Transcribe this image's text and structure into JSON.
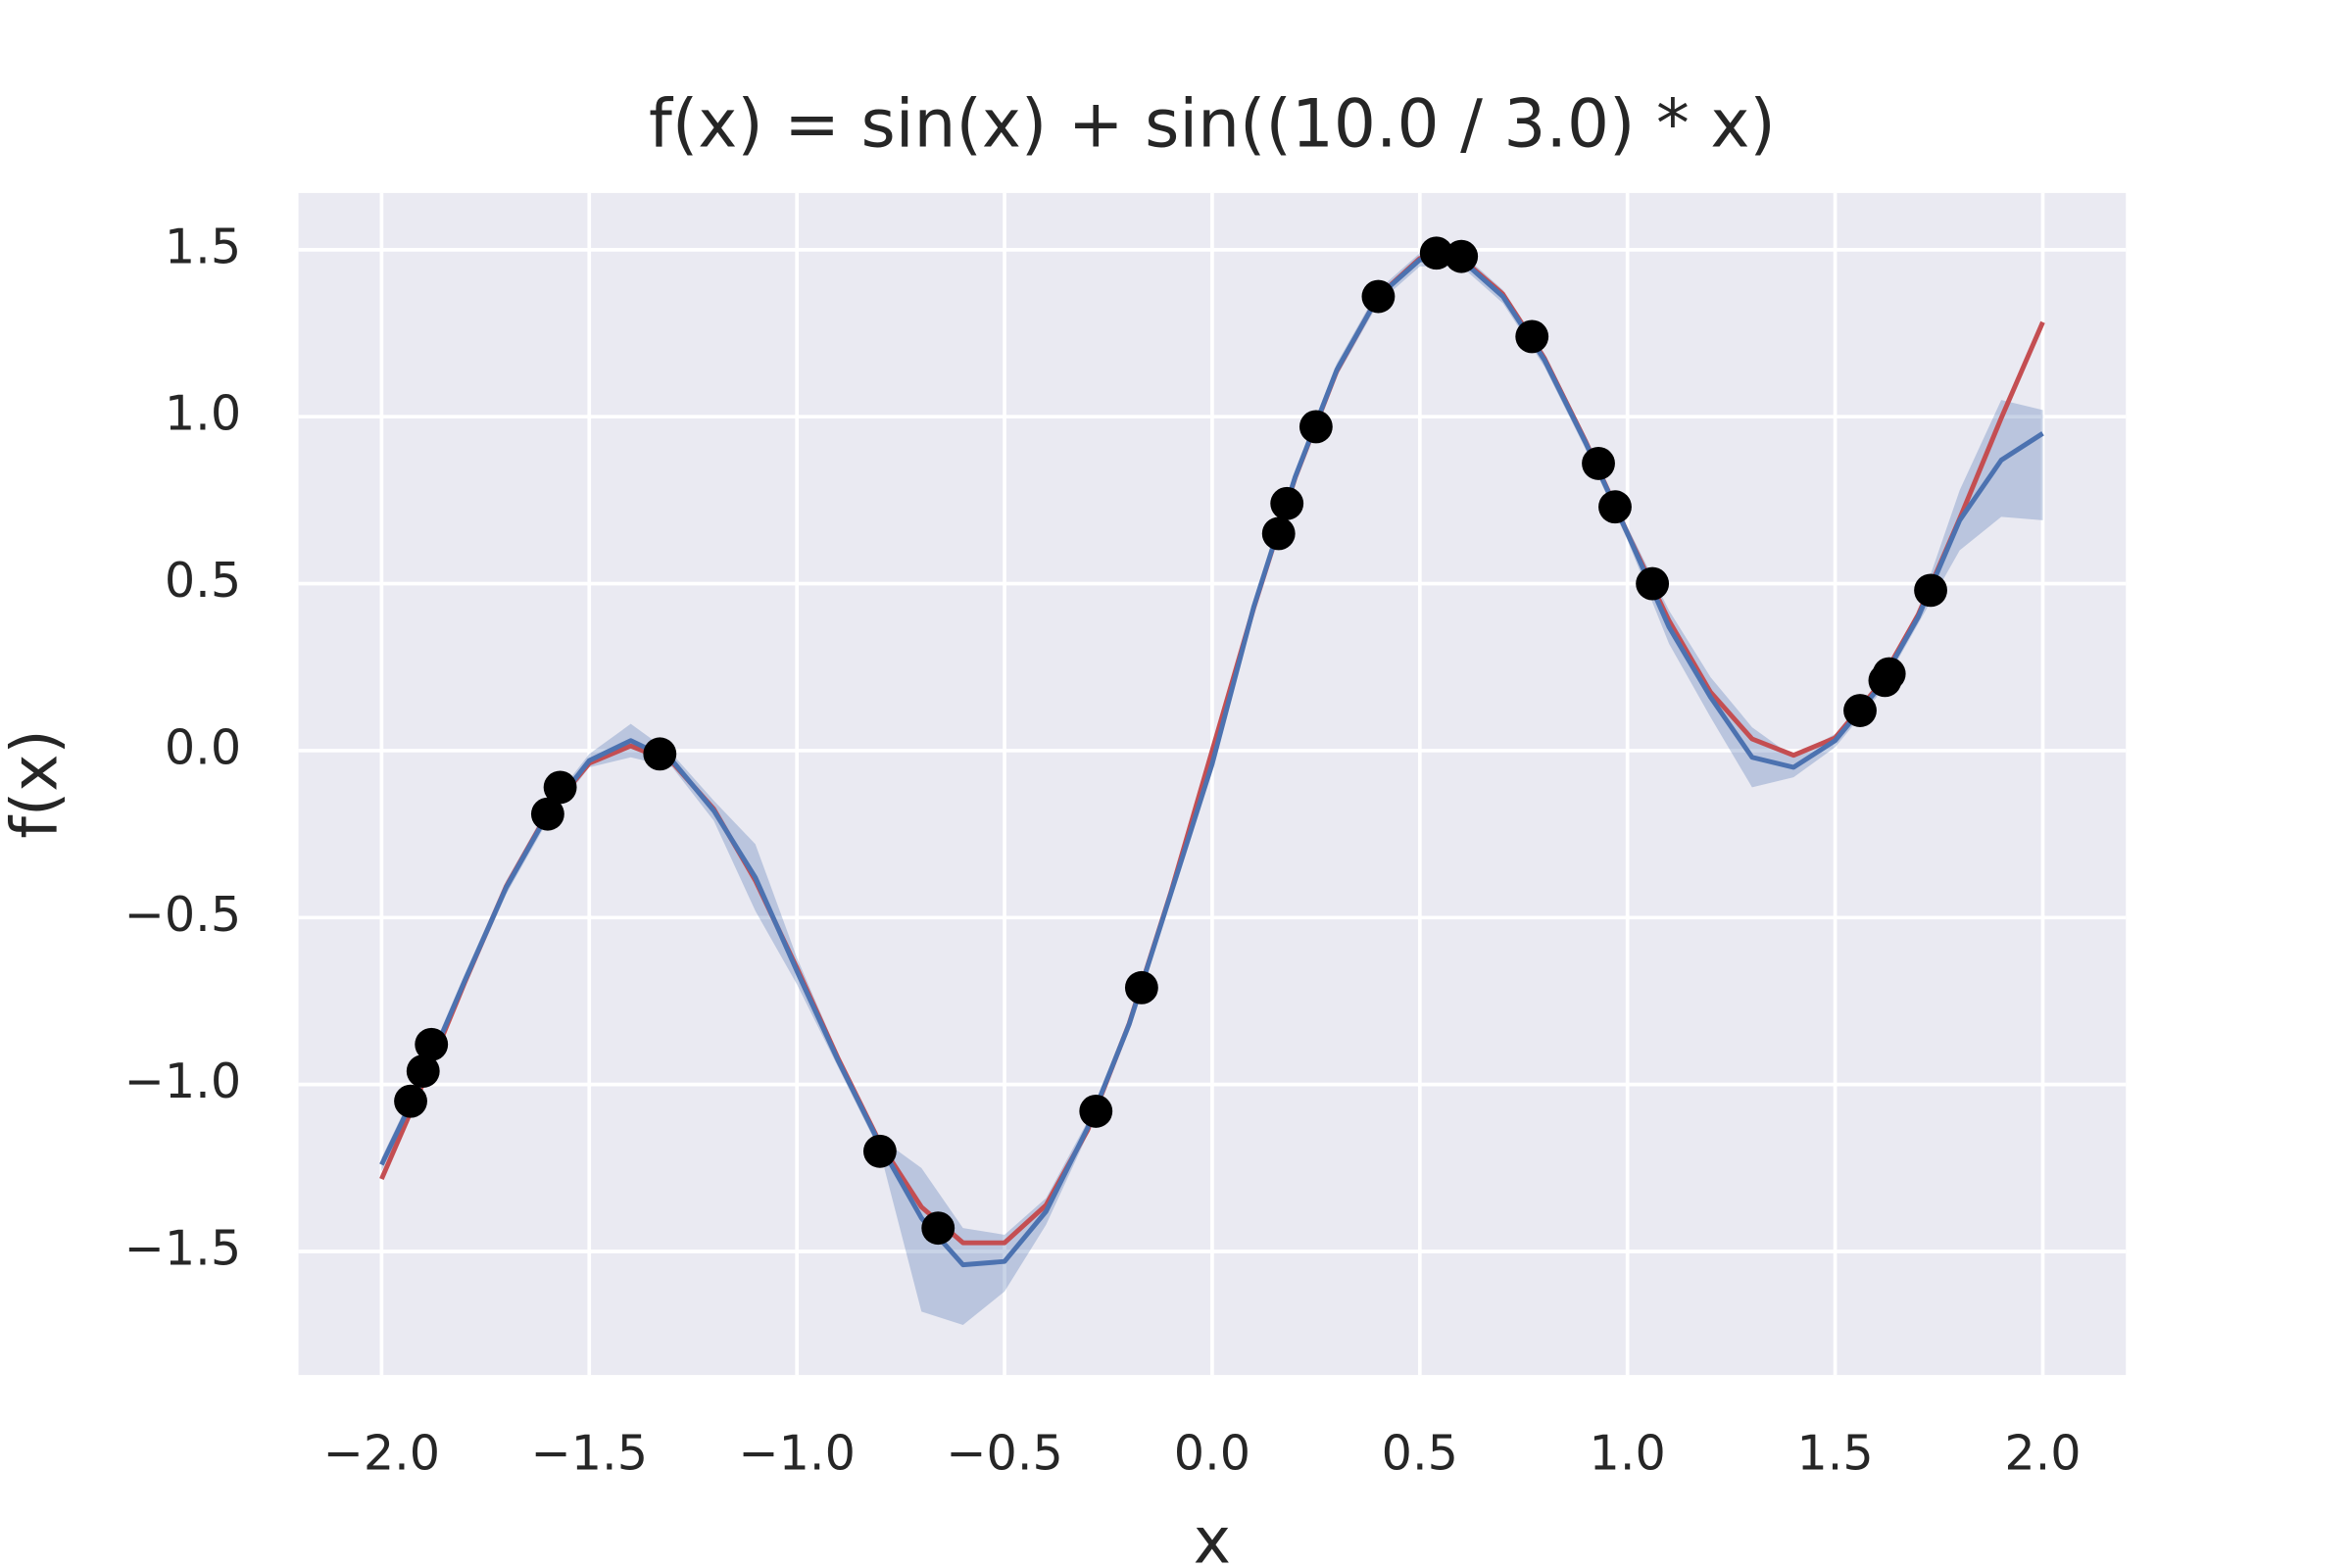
{
  "chart_data": {
    "type": "line",
    "title": "f(x) = sin(x) + sin((10.0 / 3.0) * x)",
    "x_label": "x",
    "y_label": "f(x)",
    "xlim": [
      -2.2,
      2.2
    ],
    "ylim": [
      -1.87,
      1.67
    ],
    "xticks": [
      {
        "value": -2.0,
        "label": "−2.0"
      },
      {
        "value": -1.5,
        "label": "−1.5"
      },
      {
        "value": -1.0,
        "label": "−1.0"
      },
      {
        "value": -0.5,
        "label": "−0.5"
      },
      {
        "value": 0.0,
        "label": "0.0"
      },
      0.5,
      {
        "value": 1.0,
        "label": "1.0"
      },
      1.5,
      {
        "value": 2.0,
        "label": "2.0"
      }
    ],
    "yticks": [
      {
        "value": -1.5,
        "label": "−1.5"
      },
      {
        "value": -1.0,
        "label": "−1.0"
      },
      {
        "value": -0.5,
        "label": "−0.5"
      },
      {
        "value": 0.0,
        "label": "0.0"
      },
      0.5,
      {
        "value": 1.0,
        "label": "1.0"
      },
      1.5
    ],
    "grid": true,
    "x": [
      -2.0,
      -1.9,
      -1.8,
      -1.7,
      -1.6,
      -1.5,
      -1.4,
      -1.3,
      -1.2,
      -1.1,
      -1.0,
      -0.9,
      -0.8,
      -0.7,
      -0.6,
      -0.5,
      -0.4,
      -0.3,
      -0.2,
      -0.1,
      0.0,
      0.1,
      0.2,
      0.3,
      0.4,
      0.5,
      0.6,
      0.7,
      0.8,
      0.9,
      1.0,
      1.1,
      1.2,
      1.3,
      1.4,
      1.5,
      1.6,
      1.7,
      1.8,
      1.9,
      2.0
    ],
    "series": [
      {
        "color": "#c44e52",
        "values": [
          -1.283,
          -0.996,
          -0.695,
          -0.407,
          -0.187,
          -0.038,
          0.014,
          -0.035,
          -0.175,
          -0.389,
          -0.651,
          -0.924,
          -1.175,
          -1.367,
          -1.474,
          -1.474,
          -1.361,
          -1.137,
          -0.818,
          -0.427,
          0.0,
          0.427,
          0.818,
          1.137,
          1.361,
          1.474,
          1.474,
          1.367,
          1.175,
          0.924,
          0.651,
          0.389,
          0.175,
          0.035,
          -0.014,
          0.038,
          0.187,
          0.407,
          0.695,
          0.996,
          1.283
        ]
      },
      {
        "color": "#4c72b0",
        "values": [
          -1.24,
          -0.98,
          -0.69,
          -0.41,
          -0.19,
          -0.03,
          0.03,
          -0.03,
          -0.18,
          -0.38,
          -0.66,
          -0.93,
          -1.18,
          -1.4,
          -1.54,
          -1.53,
          -1.38,
          -1.13,
          -0.82,
          -0.43,
          -0.04,
          0.43,
          0.82,
          1.14,
          1.36,
          1.47,
          1.47,
          1.36,
          1.17,
          0.92,
          0.65,
          0.37,
          0.16,
          -0.02,
          -0.05,
          0.03,
          0.18,
          0.4,
          0.69,
          0.87,
          0.95
        ],
        "band_lower": [
          -1.26,
          -1.0,
          -0.71,
          -0.43,
          -0.21,
          -0.05,
          -0.02,
          -0.05,
          -0.21,
          -0.48,
          -0.7,
          -0.95,
          -1.2,
          -1.68,
          -1.72,
          -1.62,
          -1.42,
          -1.15,
          -0.84,
          -0.45,
          -0.06,
          0.41,
          0.8,
          1.12,
          1.34,
          1.45,
          1.45,
          1.34,
          1.15,
          0.9,
          0.63,
          0.32,
          0.1,
          -0.11,
          -0.08,
          0.01,
          0.16,
          0.38,
          0.6,
          0.7,
          0.69
        ],
        "band_upper": [
          -1.22,
          -0.96,
          -0.67,
          -0.39,
          -0.17,
          -0.01,
          0.08,
          -0.01,
          -0.15,
          -0.28,
          -0.62,
          -0.91,
          -1.16,
          -1.25,
          -1.43,
          -1.45,
          -1.34,
          -1.11,
          -0.8,
          -0.41,
          -0.02,
          0.45,
          0.84,
          1.16,
          1.38,
          1.49,
          1.49,
          1.38,
          1.19,
          0.94,
          0.67,
          0.42,
          0.22,
          0.07,
          -0.02,
          0.05,
          0.2,
          0.42,
          0.78,
          1.05,
          1.02
        ]
      }
    ],
    "points": {
      "color": "#000000",
      "x": [
        -1.93,
        -1.9,
        -1.88,
        -1.6,
        -1.57,
        -1.33,
        -0.8,
        -0.66,
        -0.28,
        -0.17,
        0.16,
        0.18,
        0.25,
        0.4,
        0.54,
        0.6,
        0.77,
        0.93,
        0.97,
        1.06,
        1.56,
        1.62,
        1.63,
        1.73
      ],
      "y": [
        -1.05,
        -0.96,
        -0.88,
        -0.19,
        -0.11,
        -0.01,
        -1.2,
        -1.43,
        -1.08,
        -0.71,
        0.65,
        0.74,
        0.97,
        1.36,
        1.49,
        1.48,
        1.24,
        0.86,
        0.73,
        0.5,
        0.12,
        0.21,
        0.23,
        0.48
      ]
    }
  }
}
